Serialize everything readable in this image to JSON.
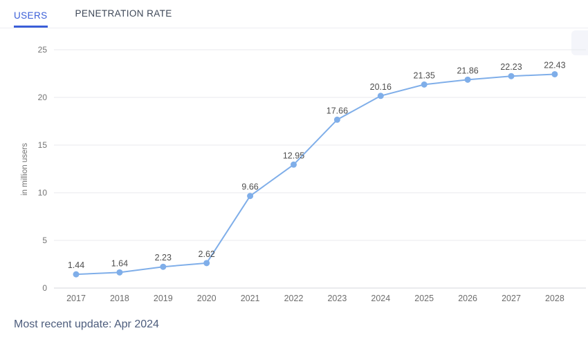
{
  "tabs": [
    {
      "label": "USERS",
      "active": true
    },
    {
      "label": "PENETRATION RATE",
      "active": false
    }
  ],
  "footer": {
    "update_text": "Most recent update: Apr 2024"
  },
  "colors": {
    "tab_accent": "#3a5ed8",
    "line": "#7faee9",
    "marker": "#7faee9",
    "gridline": "#e9eaee",
    "axis_line": "#d6d7db",
    "tick_label": "#737373",
    "data_label": "#4e4e4e",
    "footer_text": "#4c5c7c"
  },
  "chart_data": {
    "type": "line",
    "categories": [
      "2017",
      "2018",
      "2019",
      "2020",
      "2021",
      "2022",
      "2023",
      "2024",
      "2025",
      "2026",
      "2027",
      "2028"
    ],
    "values": [
      1.44,
      1.64,
      2.23,
      2.62,
      9.66,
      12.95,
      17.66,
      20.16,
      21.35,
      21.86,
      22.23,
      22.43
    ],
    "title": "",
    "xlabel": "",
    "ylabel": "in million users",
    "ylim": [
      0,
      25
    ],
    "yticks": [
      0,
      5,
      10,
      15,
      20,
      25
    ],
    "grid": true,
    "legend": "none",
    "data_labels": true
  }
}
